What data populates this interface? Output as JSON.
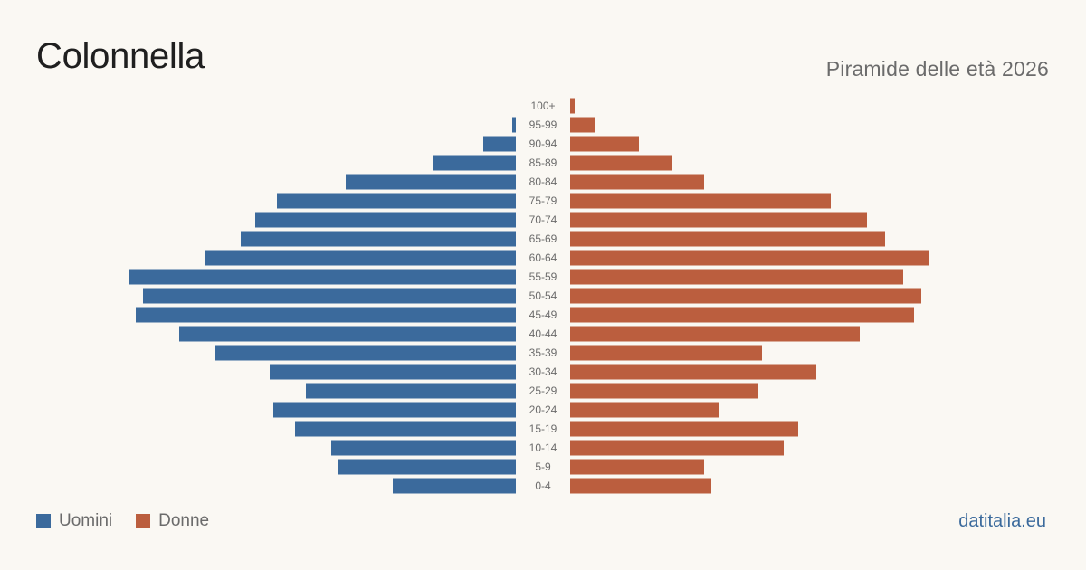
{
  "header": {
    "title": "Colonnella",
    "subtitle": "Piramide delle età 2026"
  },
  "legend": {
    "men_label": "Uomini",
    "women_label": "Donne"
  },
  "brand": "datitalia.eu",
  "colors": {
    "men": "#3b6a9c",
    "women": "#bb5e3e",
    "background": "#faf8f3"
  },
  "chart_data": {
    "type": "bar",
    "orientation": "horizontal-mirrored",
    "title": "Colonnella",
    "subtitle": "Piramide delle età 2026",
    "categories": [
      "100+",
      "95-99",
      "90-94",
      "85-89",
      "80-84",
      "75-79",
      "70-74",
      "65-69",
      "60-64",
      "55-59",
      "50-54",
      "45-49",
      "40-44",
      "35-39",
      "30-34",
      "25-29",
      "20-24",
      "15-19",
      "10-14",
      "5-9",
      "0-4"
    ],
    "series": [
      {
        "name": "Uomini",
        "values": [
          0,
          1,
          9,
          23,
          47,
          66,
          72,
          76,
          86,
          107,
          103,
          105,
          93,
          83,
          68,
          58,
          67,
          61,
          51,
          49,
          34
        ]
      },
      {
        "name": "Donne",
        "values": [
          1,
          7,
          19,
          28,
          37,
          72,
          82,
          87,
          99,
          92,
          97,
          95,
          80,
          53,
          68,
          52,
          41,
          63,
          59,
          37,
          39
        ]
      }
    ],
    "xlim": [
      0,
      110
    ],
    "grid": false,
    "legend_position": "bottom-left"
  }
}
